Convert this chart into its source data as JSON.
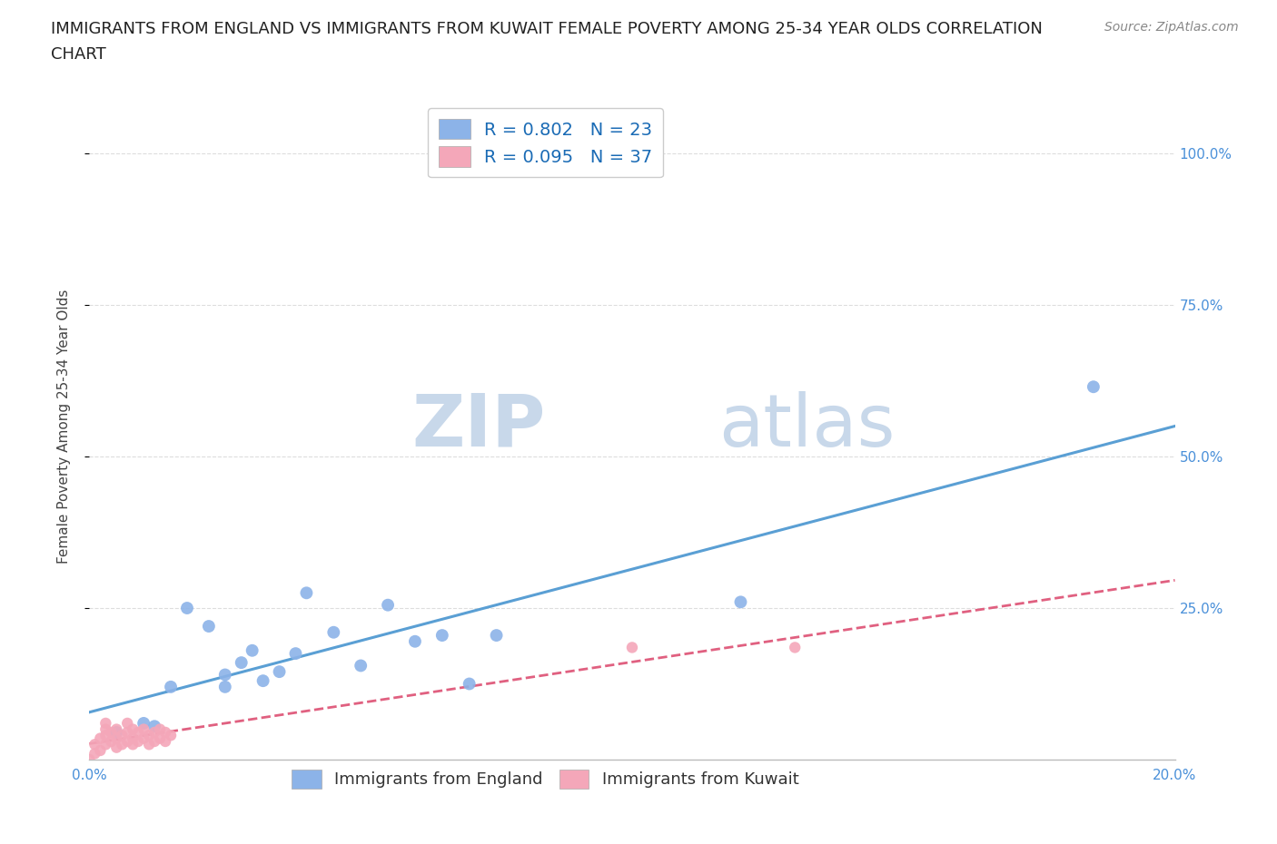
{
  "title_line1": "IMMIGRANTS FROM ENGLAND VS IMMIGRANTS FROM KUWAIT FEMALE POVERTY AMONG 25-34 YEAR OLDS CORRELATION",
  "title_line2": "CHART",
  "source": "Source: ZipAtlas.com",
  "ylabel": "Female Poverty Among 25-34 Year Olds",
  "xlim": [
    0.0,
    0.2
  ],
  "ylim": [
    0.0,
    1.1
  ],
  "xticks": [
    0.0,
    0.04,
    0.08,
    0.12,
    0.16,
    0.2
  ],
  "xticklabels": [
    "0.0%",
    "",
    "",
    "",
    "",
    "20.0%"
  ],
  "ytick_positions": [
    0.25,
    0.5,
    0.75,
    1.0
  ],
  "ytick_labels": [
    "25.0%",
    "50.0%",
    "75.0%",
    "100.0%"
  ],
  "england_color": "#8cb3e8",
  "kuwait_color": "#f4a7b9",
  "england_line_color": "#5a9fd4",
  "kuwait_line_color": "#e06080",
  "england_R": 0.802,
  "england_N": 23,
  "kuwait_R": 0.095,
  "kuwait_N": 37,
  "watermark_zip": "ZIP",
  "watermark_atlas": "atlas",
  "watermark_color": "#c8d8ea",
  "background_color": "#ffffff",
  "grid_color": "#dddddd",
  "england_scatter_x": [
    0.005,
    0.01,
    0.012,
    0.015,
    0.018,
    0.022,
    0.025,
    0.025,
    0.028,
    0.03,
    0.032,
    0.035,
    0.038,
    0.04,
    0.045,
    0.05,
    0.055,
    0.06,
    0.065,
    0.07,
    0.075,
    0.12,
    0.185
  ],
  "england_scatter_y": [
    0.045,
    0.06,
    0.055,
    0.12,
    0.25,
    0.22,
    0.12,
    0.14,
    0.16,
    0.18,
    0.13,
    0.145,
    0.175,
    0.275,
    0.21,
    0.155,
    0.255,
    0.195,
    0.205,
    0.125,
    0.205,
    0.26,
    0.615
  ],
  "kuwait_scatter_x": [
    0.0,
    0.001,
    0.001,
    0.002,
    0.002,
    0.003,
    0.003,
    0.003,
    0.003,
    0.004,
    0.004,
    0.005,
    0.005,
    0.005,
    0.006,
    0.006,
    0.007,
    0.007,
    0.007,
    0.008,
    0.008,
    0.008,
    0.009,
    0.009,
    0.01,
    0.01,
    0.011,
    0.011,
    0.012,
    0.012,
    0.013,
    0.013,
    0.014,
    0.014,
    0.015,
    0.1,
    0.13
  ],
  "kuwait_scatter_y": [
    0.0,
    0.01,
    0.025,
    0.015,
    0.035,
    0.025,
    0.04,
    0.05,
    0.06,
    0.03,
    0.045,
    0.02,
    0.035,
    0.05,
    0.025,
    0.04,
    0.03,
    0.045,
    0.06,
    0.025,
    0.035,
    0.05,
    0.03,
    0.045,
    0.035,
    0.05,
    0.025,
    0.04,
    0.03,
    0.045,
    0.035,
    0.05,
    0.03,
    0.045,
    0.04,
    0.185,
    0.185
  ],
  "title_fontsize": 13,
  "axis_label_fontsize": 11,
  "tick_fontsize": 11,
  "legend_fontsize": 14,
  "source_fontsize": 10
}
